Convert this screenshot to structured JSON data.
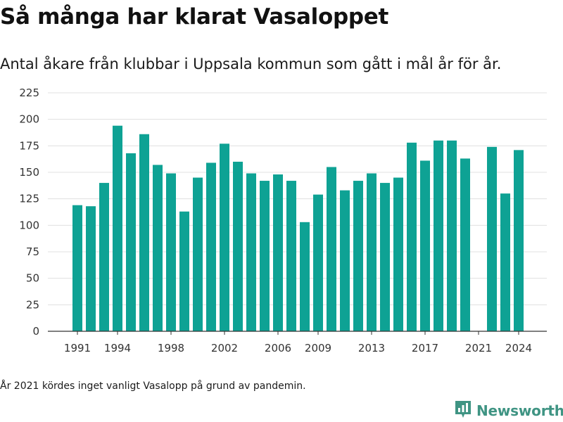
{
  "title": "Så många har klarat Vasaloppet",
  "subtitle": "Antal åkare från klubbar i Uppsala kommun som gått i mål år för år.",
  "footnote": "År 2021 kördes inget vanligt Vasalopp på grund av pandemin.",
  "brand": {
    "name": "Newsworthy",
    "icon": "newsworthy-logo-icon",
    "color": "#3f9483"
  },
  "colors": {
    "bar": "#0ea294",
    "grid": "#e0e0e0",
    "axis": "#333333"
  },
  "chart_data": {
    "type": "bar",
    "title": "",
    "xlabel": "",
    "ylabel": "",
    "ylim": [
      0,
      225
    ],
    "yticks": [
      0,
      25,
      50,
      75,
      100,
      125,
      150,
      175,
      200,
      225
    ],
    "xticks": [
      1991,
      1994,
      1998,
      2002,
      2006,
      2009,
      2013,
      2017,
      2021,
      2024
    ],
    "grid": true,
    "categories": [
      1991,
      1992,
      1993,
      1994,
      1995,
      1996,
      1997,
      1998,
      1999,
      2000,
      2001,
      2002,
      2003,
      2004,
      2005,
      2006,
      2007,
      2008,
      2009,
      2010,
      2011,
      2012,
      2013,
      2014,
      2015,
      2016,
      2017,
      2018,
      2019,
      2020,
      2021,
      2022,
      2023,
      2024
    ],
    "values": [
      119,
      118,
      140,
      194,
      168,
      186,
      157,
      149,
      113,
      145,
      159,
      177,
      160,
      149,
      142,
      148,
      142,
      103,
      129,
      155,
      133,
      142,
      149,
      140,
      145,
      178,
      161,
      180,
      180,
      163,
      null,
      174,
      130,
      171
    ]
  }
}
